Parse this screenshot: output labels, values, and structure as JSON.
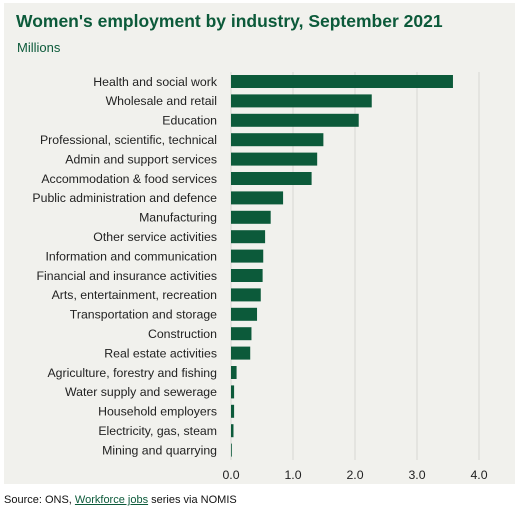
{
  "colors": {
    "bar": "#0c5a3a",
    "grid": "#d6d6d2",
    "background": "#f1f1ed",
    "title": "#0c5a3a"
  },
  "source": {
    "prefix": "Source: ONS, ",
    "link": "Workforce jobs",
    "suffix": " series via NOMIS"
  },
  "chart_data": {
    "type": "bar",
    "orientation": "horizontal",
    "title": "Women's employment by industry, September 2021",
    "subtitle": "Millions",
    "xlim": [
      0,
      4.0
    ],
    "xticks": [
      "0.0",
      "1.0",
      "2.0",
      "3.0",
      "4.0"
    ],
    "grid": true,
    "categories": [
      "Health and social work",
      "Wholesale and retail",
      "Education",
      "Professional, scientific, technical",
      "Admin and support services",
      "Accommodation & food services",
      "Public administration and defence",
      "Manufacturing",
      "Other service activities",
      "Information and communication",
      "Financial and insurance activities",
      "Arts, entertainment, recreation",
      "Transportation and storage",
      "Construction",
      "Real estate activities",
      "Agriculture, forestry and fishing",
      "Water supply and sewerage",
      "Household employers",
      "Electricity, gas, steam",
      "Mining and quarrying"
    ],
    "values": [
      3.58,
      2.27,
      2.06,
      1.49,
      1.39,
      1.3,
      0.84,
      0.64,
      0.55,
      0.52,
      0.51,
      0.48,
      0.42,
      0.33,
      0.31,
      0.09,
      0.05,
      0.05,
      0.04,
      0.01
    ]
  }
}
